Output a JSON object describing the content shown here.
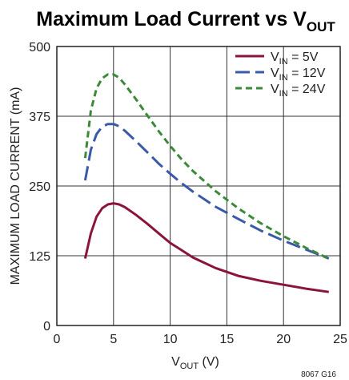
{
  "chart_data": {
    "type": "line",
    "title": "Maximum Load Current vs V",
    "title_subscript": "OUT",
    "xlabel": "V",
    "xlabel_subscript": "OUT",
    "xlabel_unit": " (V)",
    "ylabel": "MAXIMUM LOAD CURRENT (mA)",
    "xlim": [
      0,
      25
    ],
    "ylim": [
      0,
      500
    ],
    "xticks": [
      0,
      5,
      10,
      15,
      20,
      25
    ],
    "yticks": [
      0,
      125,
      250,
      375,
      500
    ],
    "grid": true,
    "legend_position": "top-right",
    "footnote": "8067 G16",
    "series": [
      {
        "name": "V",
        "name_subscript": "IN",
        "name_suffix": " = 5V",
        "color": "#8b1538",
        "dash": "solid",
        "x": [
          2.5,
          3,
          3.5,
          4,
          4.5,
          5,
          5.5,
          6,
          7,
          8,
          9,
          10,
          11,
          12,
          14,
          16,
          18,
          20,
          22,
          24
        ],
        "y": [
          120,
          165,
          195,
          210,
          217,
          219,
          217,
          212,
          198,
          182,
          165,
          148,
          135,
          122,
          103,
          89,
          80,
          73,
          66,
          60
        ]
      },
      {
        "name": "V",
        "name_subscript": "IN",
        "name_suffix": " = 12V",
        "color": "#3a5aa8",
        "dash": "long",
        "x": [
          2.5,
          3,
          3.5,
          4,
          4.5,
          5,
          5.5,
          6,
          7,
          8,
          9,
          10,
          11,
          12,
          14,
          16,
          18,
          20,
          22,
          24
        ],
        "y": [
          260,
          315,
          343,
          356,
          361,
          361,
          357,
          349,
          330,
          310,
          290,
          272,
          255,
          240,
          213,
          191,
          170,
          152,
          136,
          120
        ]
      },
      {
        "name": "V",
        "name_subscript": "IN",
        "name_suffix": " = 24V",
        "color": "#3a8a3a",
        "dash": "short",
        "x": [
          2.5,
          3,
          3.5,
          4,
          4.5,
          5,
          5.5,
          6,
          7,
          8,
          9,
          10,
          11,
          12,
          14,
          16,
          18,
          20,
          22,
          24
        ],
        "y": [
          300,
          385,
          425,
          443,
          450,
          450,
          444,
          432,
          405,
          376,
          348,
          322,
          298,
          277,
          241,
          210,
          183,
          160,
          139,
          120
        ]
      }
    ]
  }
}
